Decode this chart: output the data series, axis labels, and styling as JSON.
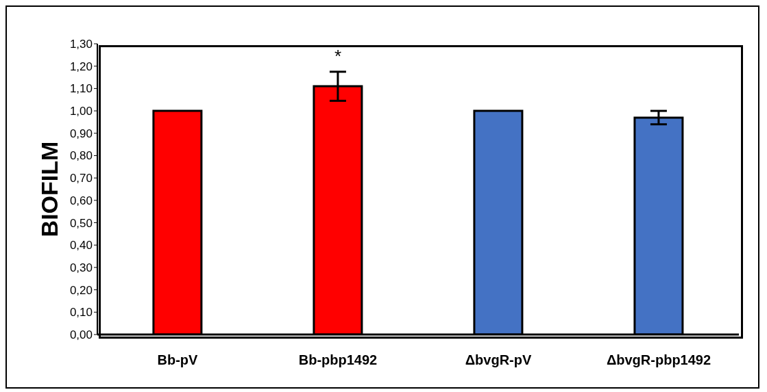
{
  "chart_data": {
    "type": "bar",
    "ylabel": "BIOFILM",
    "categories": [
      "Bb-pV",
      "Bb-pbp1492",
      "ΔbvgR-pV",
      "ΔbvgR-pbp1492"
    ],
    "values": [
      1.0,
      1.11,
      1.0,
      0.97
    ],
    "colors": [
      "#ff0000",
      "#ff0000",
      "#4472c4",
      "#4472c4"
    ],
    "errors": [
      0,
      0.065,
      0,
      0.03
    ],
    "ylim": [
      0,
      1.3
    ],
    "yticks": [
      {
        "value": 0,
        "label": "0,00"
      },
      {
        "value": 0.1,
        "label": "0,10"
      },
      {
        "value": 0.2,
        "label": "0,20"
      },
      {
        "value": 0.3,
        "label": "0,30"
      },
      {
        "value": 0.4,
        "label": "0,40"
      },
      {
        "value": 0.5,
        "label": "0,50"
      },
      {
        "value": 0.6,
        "label": "0,60"
      },
      {
        "value": 0.7,
        "label": "0,70"
      },
      {
        "value": 0.8,
        "label": "0,80"
      },
      {
        "value": 0.9,
        "label": "0,90"
      },
      {
        "value": 1.0,
        "label": "1,00"
      },
      {
        "value": 1.1,
        "label": "1,10"
      },
      {
        "value": 1.2,
        "label": "1,20"
      },
      {
        "value": 1.3,
        "label": "1,30"
      }
    ],
    "annotations": [
      {
        "text": "*",
        "x": "Bb-pbp1492",
        "y": 1.11
      }
    ],
    "grid": false,
    "legend": false
  }
}
